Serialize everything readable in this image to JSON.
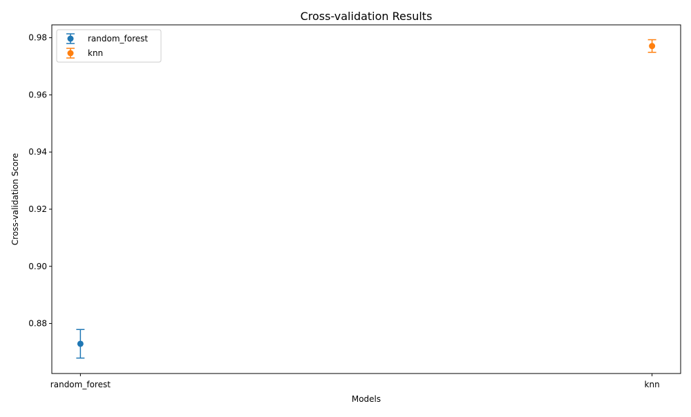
{
  "chart_data": {
    "type": "scatter",
    "title": "Cross-validation Results",
    "xlabel": "Models",
    "ylabel": "Cross-validation Score",
    "categories": [
      "random_forest",
      "knn"
    ],
    "ylim": [
      0.8625,
      0.9845
    ],
    "yticks": [
      "0.88",
      "0.90",
      "0.92",
      "0.94",
      "0.96",
      "0.98"
    ],
    "grid": false,
    "legend_position": "top-left",
    "series": [
      {
        "name": "random_forest",
        "x": "random_forest",
        "mean": 0.8729,
        "error": 0.005,
        "color": "#1f77b4"
      },
      {
        "name": "knn",
        "x": "knn",
        "mean": 0.9771,
        "error": 0.0022,
        "color": "#ff7f0e"
      }
    ]
  }
}
